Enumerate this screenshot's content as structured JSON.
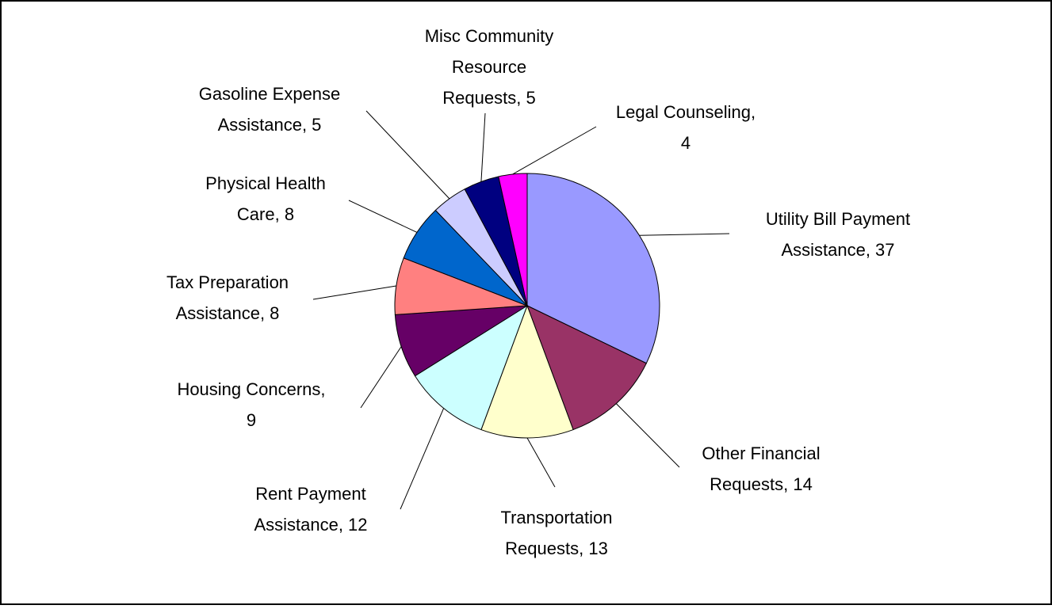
{
  "chart_data": {
    "type": "pie",
    "values": [
      37,
      14,
      13,
      12,
      9,
      8,
      8,
      5,
      5,
      4
    ],
    "value_labels": [
      [
        "Utility Bill Payment",
        "Assistance, 37"
      ],
      [
        "Other Financial",
        "Requests, 14"
      ],
      [
        "Transportation",
        "Requests, 13"
      ],
      [
        "Rent Payment",
        "Assistance, 12"
      ],
      [
        "Housing Concerns,",
        "9"
      ],
      [
        "Tax Preparation",
        "Assistance, 8"
      ],
      [
        "Physical Health",
        "Care, 8"
      ],
      [
        "Gasoline Expense",
        "Assistance, 5"
      ],
      [
        "Misc Community",
        "Resource",
        "Requests, 5"
      ],
      [
        "Legal Counseling,",
        "4"
      ]
    ],
    "colors": [
      "#9999ff",
      "#993366",
      "#ffffcc",
      "#ccffff",
      "#660066",
      "#ff8080",
      "#0066cc",
      "#ccccff",
      "#000080",
      "#ff00ff"
    ]
  }
}
